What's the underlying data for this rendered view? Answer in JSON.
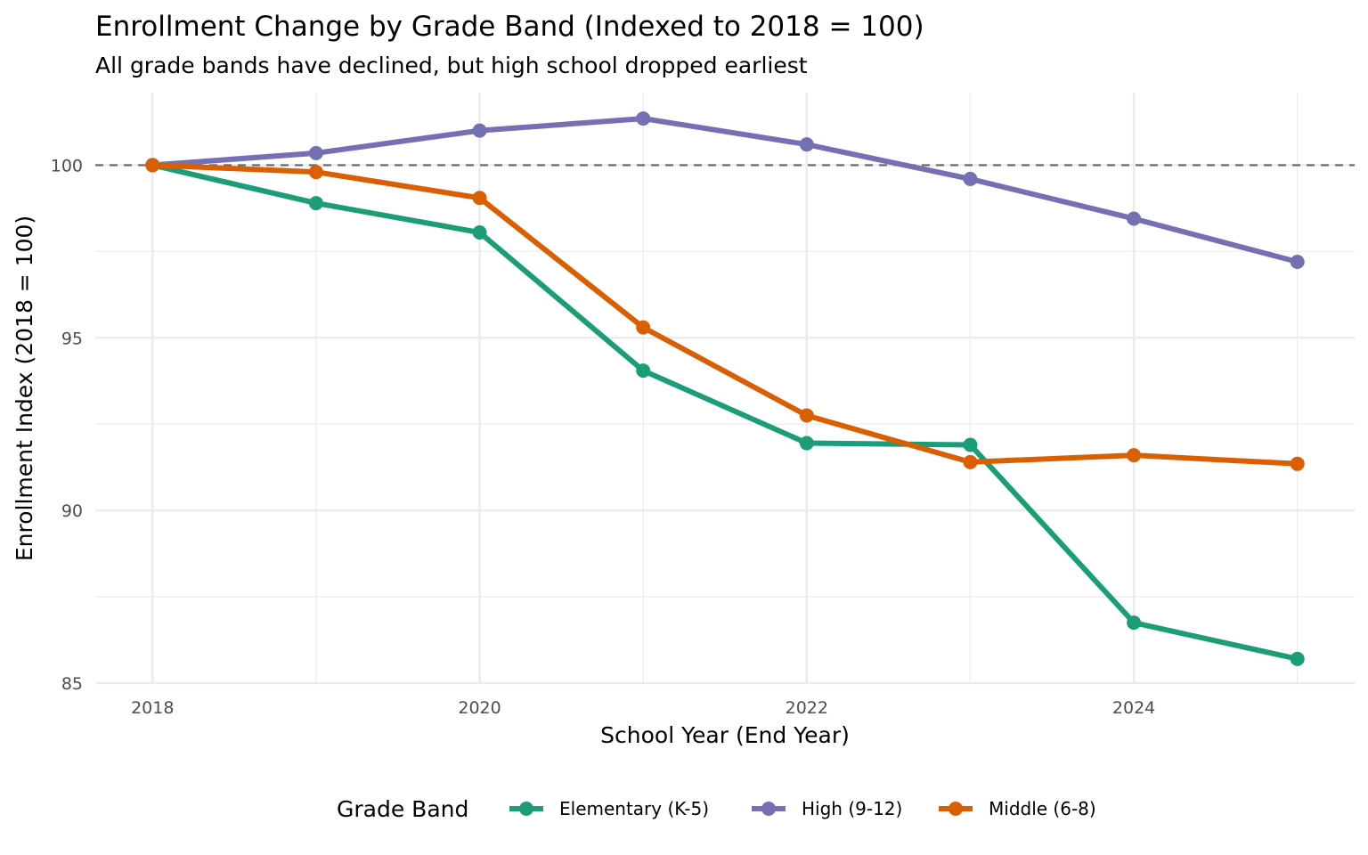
{
  "chart_data": {
    "type": "line",
    "title": "Enrollment Change by Grade Band (Indexed to 2018 = 100)",
    "subtitle": "All grade bands have declined, but high school dropped earliest",
    "xlabel": "School Year (End Year)",
    "ylabel": "Enrollment Index (2018 = 100)",
    "x": [
      2018,
      2019,
      2020,
      2021,
      2022,
      2023,
      2024,
      2025
    ],
    "xlim": [
      2017.65,
      2025.35
    ],
    "ylim": [
      85,
      102.1
    ],
    "x_ticks": [
      2018,
      2020,
      2022,
      2024
    ],
    "x_tick_labels": [
      "2018",
      "2020",
      "2022",
      "2024"
    ],
    "y_ticks": [
      85,
      90,
      95,
      100
    ],
    "y_tick_labels": [
      "85",
      "90",
      "95",
      "100"
    ],
    "grid": true,
    "reference_line": {
      "y": 100,
      "style": "dashed",
      "color": "#666666"
    },
    "legend": {
      "title": "Grade Band",
      "position": "bottom"
    },
    "series": [
      {
        "name": "Elementary (K-5)",
        "color": "#1B9E77",
        "values": [
          100,
          98.9,
          98.05,
          94.05,
          91.95,
          91.9,
          86.75,
          85.7
        ]
      },
      {
        "name": "High (9-12)",
        "color": "#7570B3",
        "values": [
          100,
          100.35,
          101.0,
          101.35,
          100.6,
          99.6,
          98.45,
          97.2
        ]
      },
      {
        "name": "Middle (6-8)",
        "color": "#D95F02",
        "values": [
          100,
          99.8,
          99.05,
          95.3,
          92.75,
          91.4,
          91.6,
          91.35
        ]
      }
    ]
  }
}
